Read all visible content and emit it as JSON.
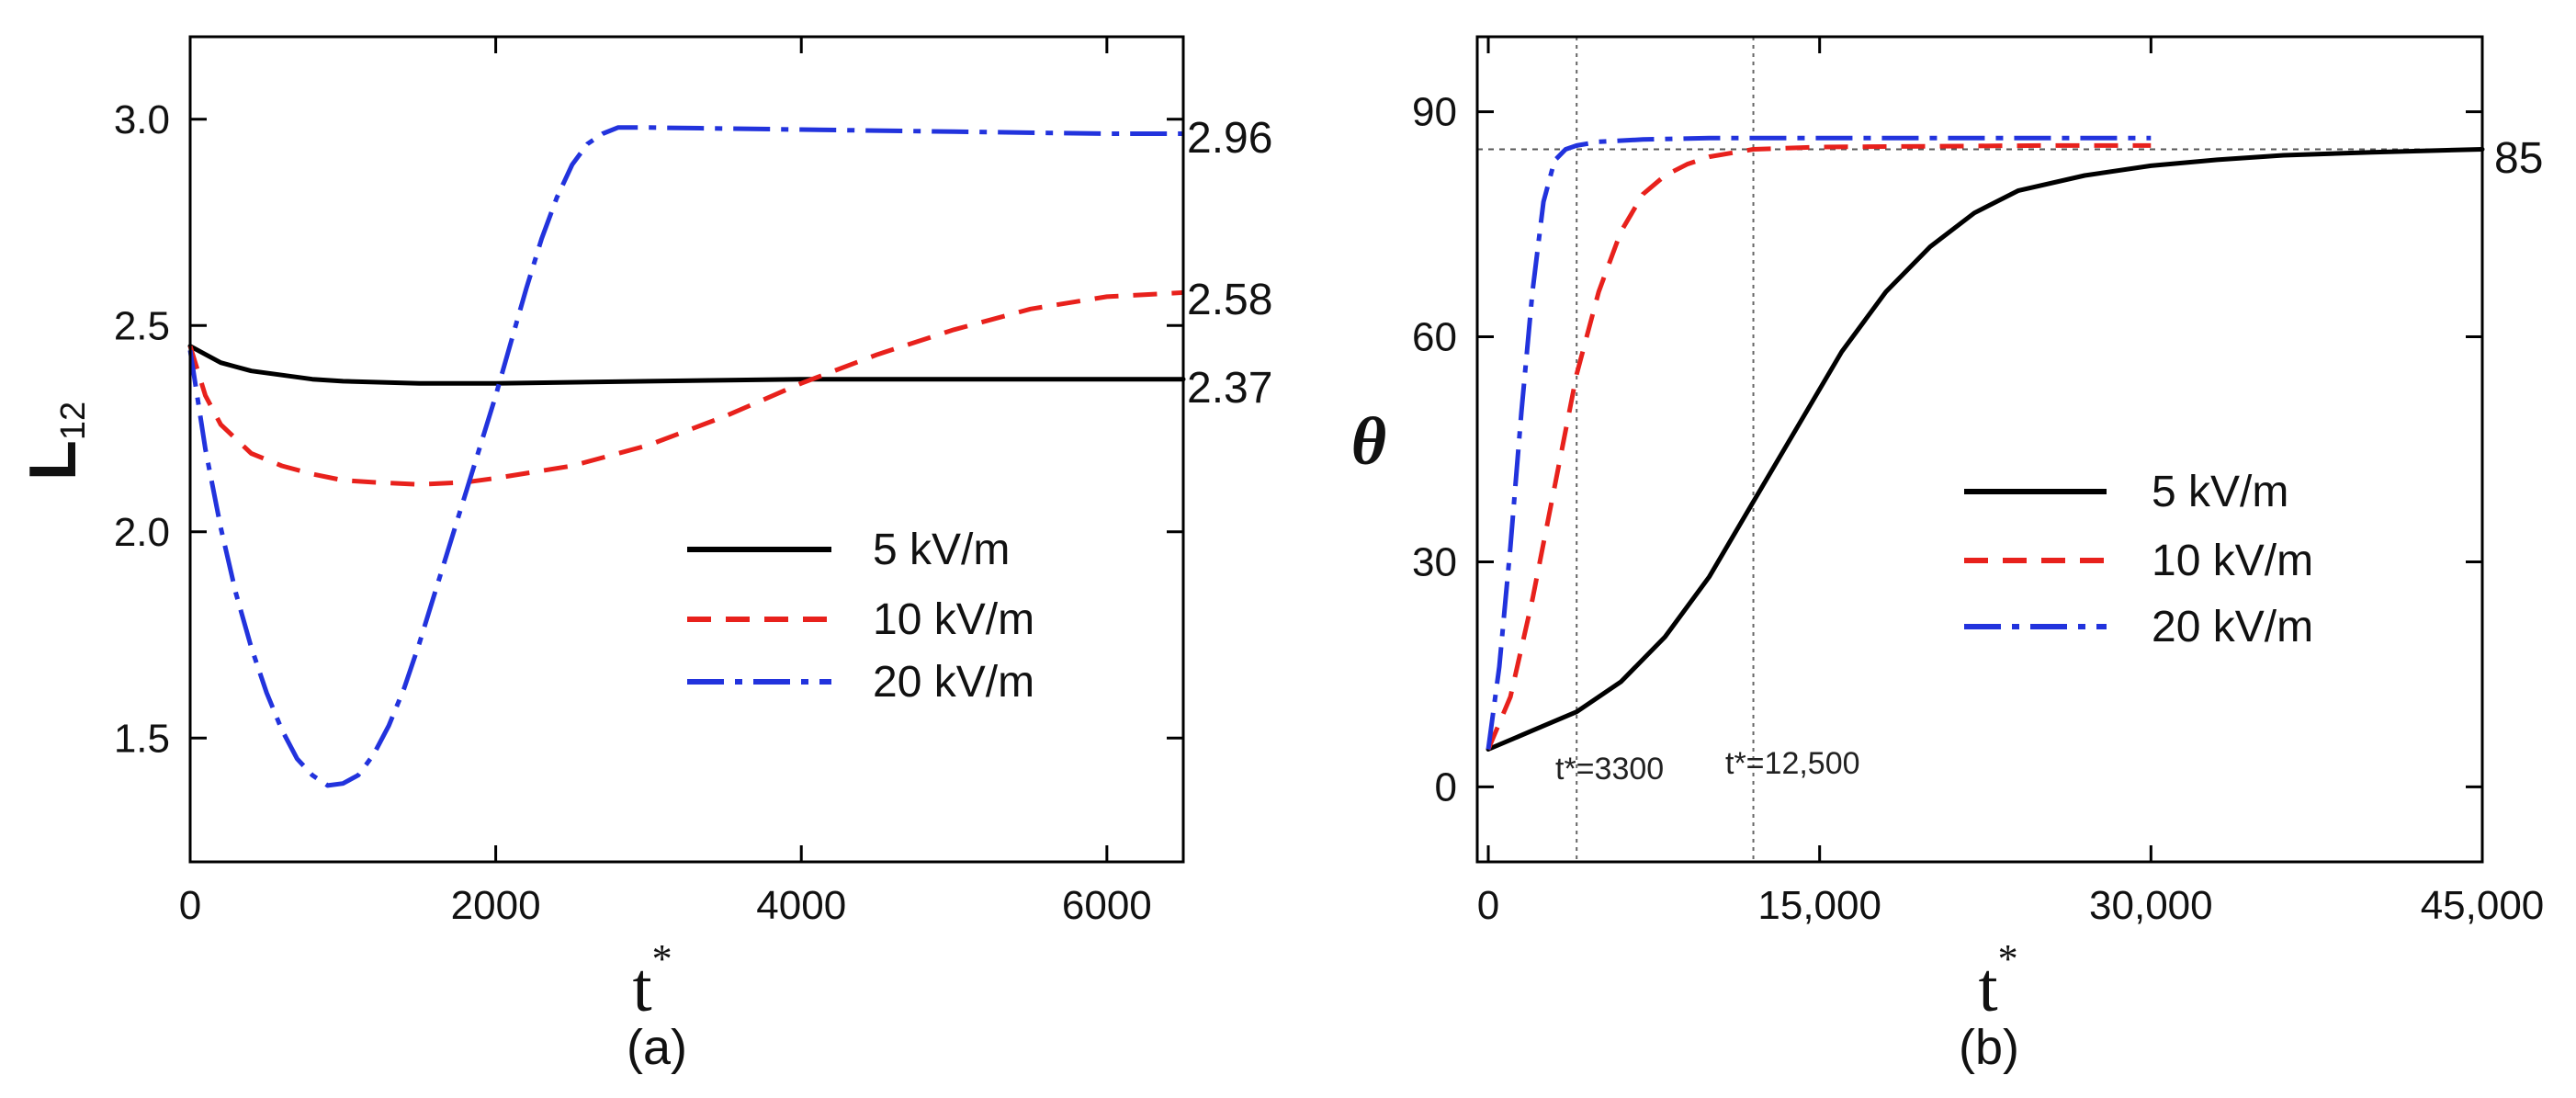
{
  "chart_data": [
    {
      "panel": "(a)",
      "type": "line",
      "xlabel": "t",
      "xlabel_sup": "*",
      "ylabel": "L",
      "ylabel_sub": "12",
      "xlim": [
        0,
        6500
      ],
      "ylim": [
        1.2,
        3.2
      ],
      "xticks": [
        0,
        2000,
        4000,
        6000
      ],
      "xtick_labels": [
        "0",
        "2000",
        "4000",
        "6000"
      ],
      "yticks": [
        1.5,
        2.0,
        2.5,
        3.0
      ],
      "ytick_labels": [
        "1.5",
        "2.0",
        "2.5",
        "3.0"
      ],
      "end_labels": [
        "2.96",
        "2.58",
        "2.37"
      ],
      "legend_position": "lower-right",
      "series": [
        {
          "name": "5 kV/m",
          "color": "#000000",
          "style": "solid",
          "x": [
            0,
            100,
            200,
            400,
            600,
            800,
            1000,
            1500,
            2000,
            3000,
            4000,
            5000,
            6000,
            6500
          ],
          "y": [
            2.45,
            2.43,
            2.41,
            2.39,
            2.38,
            2.37,
            2.365,
            2.36,
            2.36,
            2.365,
            2.37,
            2.37,
            2.37,
            2.37
          ]
        },
        {
          "name": "10 kV/m",
          "color": "#e8211c",
          "style": "dashed",
          "x": [
            0,
            100,
            200,
            400,
            600,
            800,
            1000,
            1200,
            1500,
            1800,
            2000,
            2500,
            3000,
            3500,
            4000,
            4500,
            5000,
            5500,
            6000,
            6500
          ],
          "y": [
            2.45,
            2.33,
            2.26,
            2.19,
            2.16,
            2.14,
            2.125,
            2.12,
            2.115,
            2.12,
            2.13,
            2.16,
            2.21,
            2.28,
            2.36,
            2.43,
            2.49,
            2.54,
            2.57,
            2.58
          ]
        },
        {
          "name": "20 kV/m",
          "color": "#2233dd",
          "style": "dashdot",
          "x": [
            0,
            100,
            200,
            300,
            400,
            500,
            600,
            700,
            800,
            900,
            1000,
            1100,
            1200,
            1300,
            1400,
            1500,
            1600,
            1700,
            1800,
            1900,
            2000,
            2100,
            2200,
            2300,
            2400,
            2500,
            2600,
            2700,
            2800,
            3000,
            4000,
            5000,
            6000,
            6500
          ],
          "y": [
            2.44,
            2.2,
            2.01,
            1.85,
            1.72,
            1.61,
            1.52,
            1.45,
            1.41,
            1.385,
            1.39,
            1.41,
            1.46,
            1.53,
            1.62,
            1.73,
            1.85,
            1.97,
            2.09,
            2.21,
            2.33,
            2.46,
            2.59,
            2.71,
            2.81,
            2.89,
            2.94,
            2.965,
            2.98,
            2.98,
            2.975,
            2.97,
            2.965,
            2.965
          ]
        }
      ]
    },
    {
      "panel": "(b)",
      "type": "line",
      "xlabel": "t",
      "xlabel_sup": "*",
      "ylabel": "θ",
      "xlim": [
        -500,
        45000
      ],
      "ylim": [
        -10,
        100
      ],
      "xticks": [
        0,
        15000,
        30000,
        45000
      ],
      "xtick_labels": [
        "0",
        "15,000",
        "30,000",
        "45,000"
      ],
      "yticks": [
        0,
        30,
        60,
        90
      ],
      "ytick_labels": [
        "0",
        "30",
        "60",
        "90"
      ],
      "end_labels": [
        "85"
      ],
      "reference_line": 85,
      "vertical_lines": [
        4000,
        12000
      ],
      "annotations": [
        "t*=3300",
        "t*=12,500"
      ],
      "legend_position": "center-right",
      "series": [
        {
          "name": "5 kV/m",
          "color": "#000000",
          "style": "solid",
          "x": [
            0,
            2000,
            4000,
            6000,
            8000,
            10000,
            12000,
            14000,
            16000,
            18000,
            20000,
            22000,
            24000,
            27000,
            30000,
            33000,
            36000,
            40000,
            45000
          ],
          "y": [
            5,
            7.5,
            10,
            14,
            20,
            28,
            38,
            48,
            58,
            66,
            72,
            76.5,
            79.5,
            81.5,
            82.8,
            83.6,
            84.2,
            84.6,
            85
          ]
        },
        {
          "name": "10 kV/m",
          "color": "#e8211c",
          "style": "dashed",
          "x": [
            0,
            1000,
            2000,
            3000,
            4000,
            5000,
            6000,
            7000,
            8000,
            9000,
            10000,
            12000,
            15000,
            20000,
            25000,
            30000
          ],
          "y": [
            5,
            12,
            25,
            40,
            55,
            66,
            74,
            79,
            81.5,
            83,
            84,
            85,
            85.3,
            85.4,
            85.5,
            85.5
          ]
        },
        {
          "name": "20 kV/m",
          "color": "#2233dd",
          "style": "dashdot",
          "x": [
            0,
            500,
            1000,
            1500,
            2000,
            2500,
            3000,
            3500,
            4000,
            5000,
            7000,
            10000,
            15000,
            20000,
            25000,
            30000
          ],
          "y": [
            5,
            16,
            32,
            50,
            66,
            78,
            83.5,
            85,
            85.5,
            86,
            86.3,
            86.5,
            86.5,
            86.5,
            86.5,
            86.5
          ]
        }
      ]
    }
  ]
}
